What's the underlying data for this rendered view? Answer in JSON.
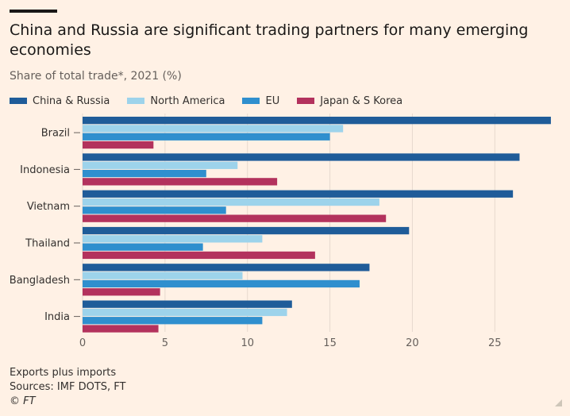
{
  "chart_data": {
    "type": "bar",
    "orientation": "horizontal",
    "title": "China and Russia are significant trading partners for many emerging economies",
    "subtitle": "Share of total trade*, 2021 (%)",
    "categories": [
      "Brazil",
      "Indonesia",
      "Vietnam",
      "Thailand",
      "Bangladesh",
      "India"
    ],
    "series": [
      {
        "name": "China & Russia",
        "color": "#1f5c99",
        "values": [
          28.4,
          26.5,
          26.1,
          19.8,
          17.4,
          12.7
        ]
      },
      {
        "name": "North America",
        "color": "#9dd3eb",
        "values": [
          15.8,
          9.4,
          18.0,
          10.9,
          9.7,
          12.4
        ]
      },
      {
        "name": "EU",
        "color": "#2f8fce",
        "values": [
          15.0,
          7.5,
          8.7,
          7.3,
          16.8,
          10.9
        ]
      },
      {
        "name": "Japan & S Korea",
        "color": "#b3325d",
        "values": [
          4.3,
          11.8,
          18.4,
          14.1,
          4.7,
          4.6
        ]
      }
    ],
    "xlim": [
      0,
      28.5
    ],
    "xticks": [
      0,
      5,
      10,
      15,
      20,
      25
    ],
    "xlabel": "",
    "ylabel": "",
    "grid": true,
    "legend_position": "top"
  },
  "footer": {
    "note": "Exports plus imports",
    "sources": "Sources: IMF DOTS, FT",
    "copyright": "© FT"
  }
}
